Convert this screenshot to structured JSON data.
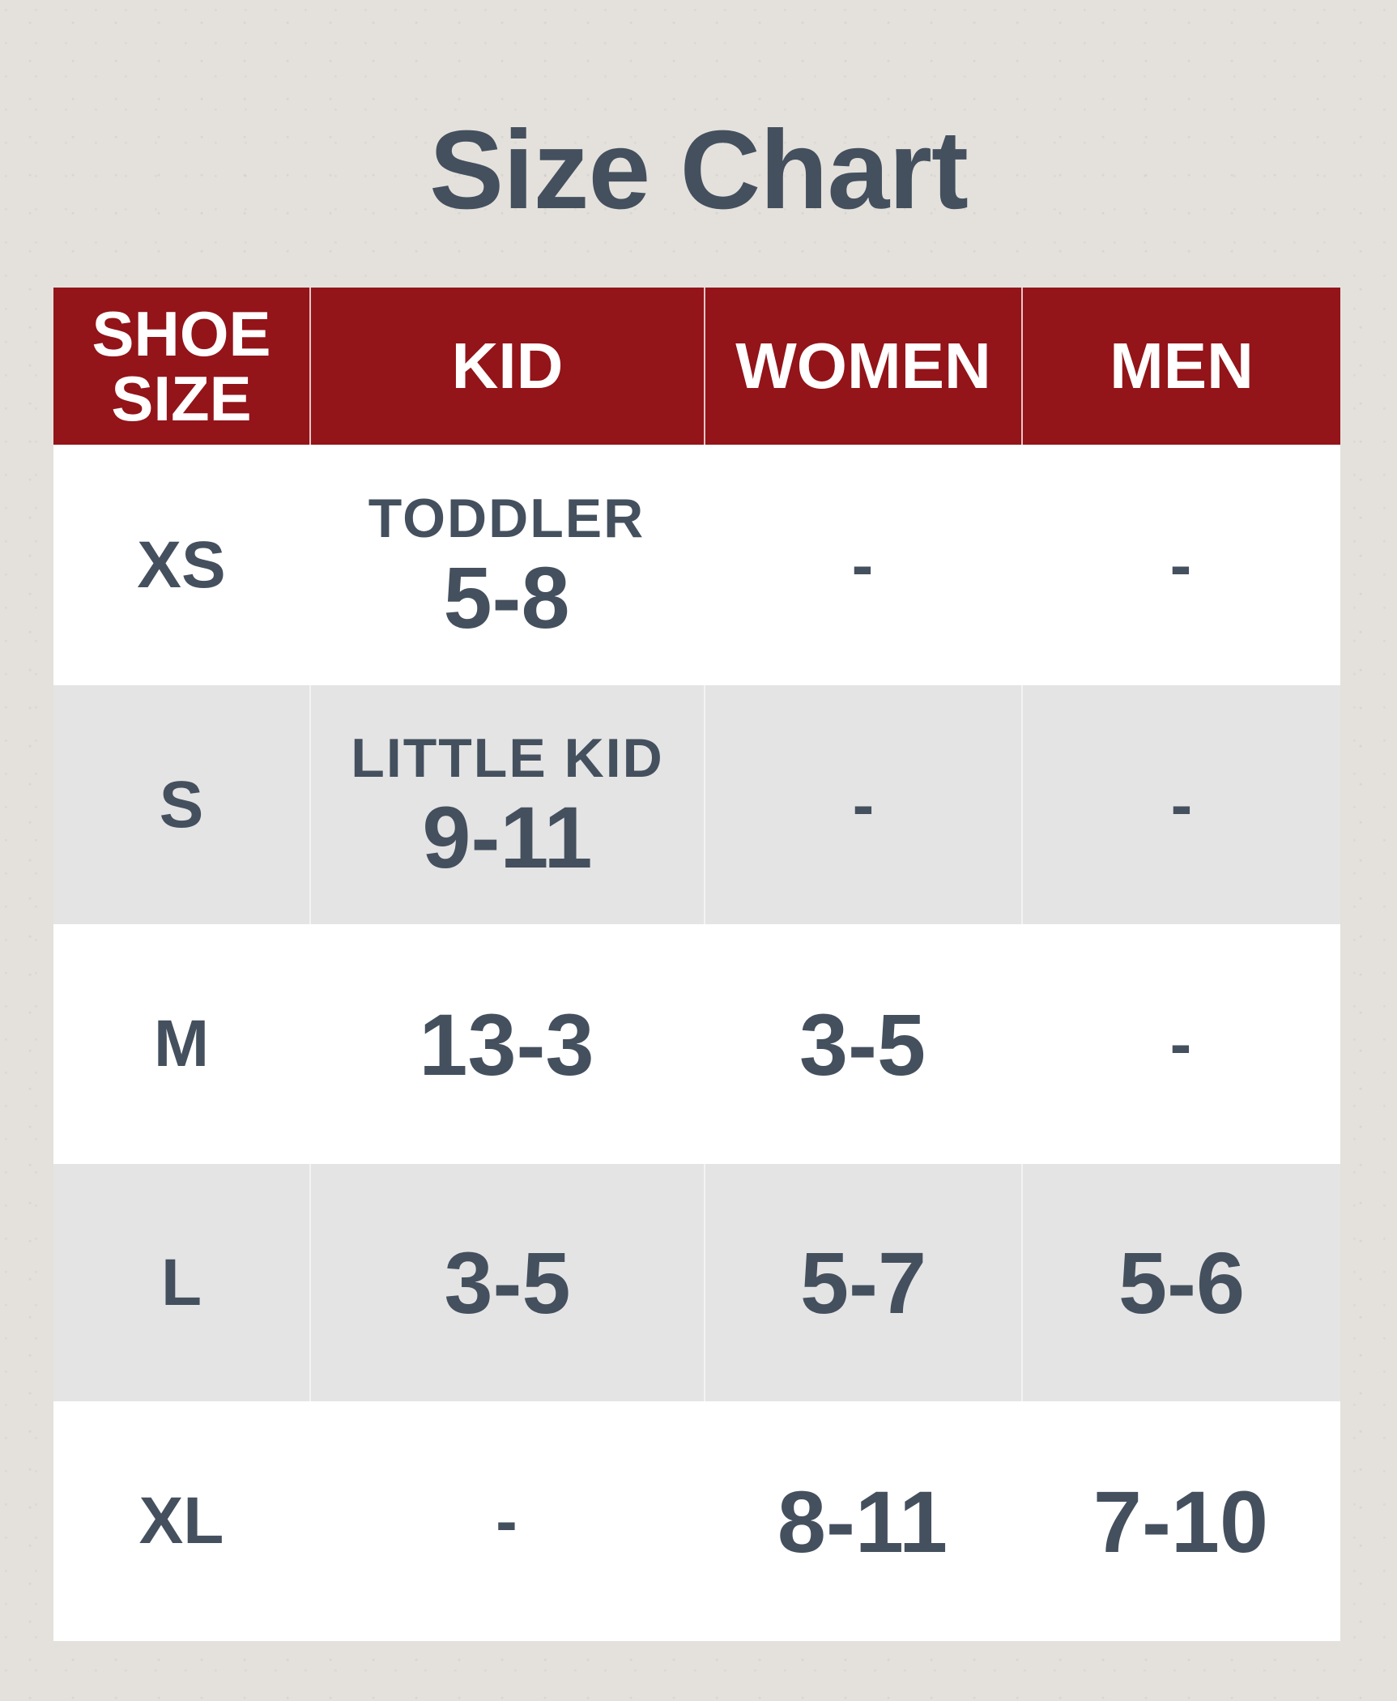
{
  "title": "Size Chart",
  "colors": {
    "header_bg": "#931419",
    "text": "#44505e",
    "alt_row": "#e4e4e4"
  },
  "headers": [
    "SHOE SIZE",
    "KID",
    "WOMEN",
    "MEN"
  ],
  "rows": [
    {
      "size": "XS",
      "kid_sub": "TODDLER",
      "kid": "5-8",
      "women": "-",
      "men": "-"
    },
    {
      "size": "S",
      "kid_sub": "LITTLE KID",
      "kid": "9-11",
      "women": "-",
      "men": "-"
    },
    {
      "size": "M",
      "kid_sub": "",
      "kid": "13-3",
      "women": "3-5",
      "men": "-"
    },
    {
      "size": "L",
      "kid_sub": "",
      "kid": "3-5",
      "women": "5-7",
      "men": "5-6"
    },
    {
      "size": "XL",
      "kid_sub": "",
      "kid": "-",
      "women": "8-11",
      "men": "7-10"
    }
  ]
}
